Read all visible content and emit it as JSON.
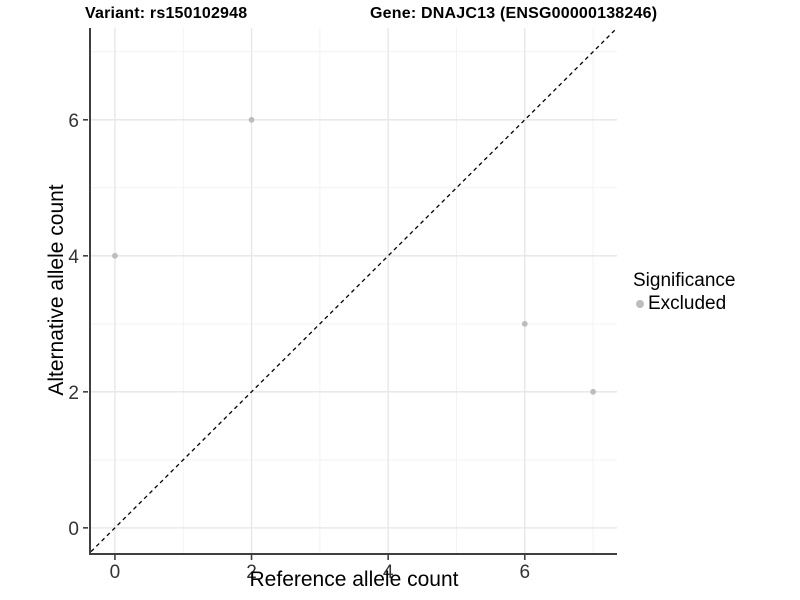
{
  "titles": {
    "variant": "Variant: rs150102948",
    "gene": "Gene: DNAJC13 (ENSG00000138246)"
  },
  "legend": {
    "title": "Significance",
    "items": [
      {
        "label": "Excluded",
        "color": "#bdbdbd"
      }
    ]
  },
  "colors": {
    "point": "#bdbdbd",
    "grid_major": "#e6e6e6",
    "grid_minor": "#f2f2f2",
    "axis_line": "#3f3f3f",
    "tick_label": "#333333",
    "dashed_line": "#000000",
    "background": "#ffffff"
  },
  "chart_data": {
    "type": "scatter",
    "title": "Variant: rs150102948   Gene: DNAJC13 (ENSG00000138246)",
    "xlabel": "Reference allele count",
    "ylabel": "Alternative allele count",
    "xlim": [
      -0.35,
      7.35
    ],
    "ylim": [
      -0.37,
      7.35
    ],
    "x_ticks": [
      0,
      2,
      4,
      6
    ],
    "y_ticks": [
      0,
      2,
      4,
      6
    ],
    "x_minor_ticks": [
      1,
      3,
      5,
      7
    ],
    "y_minor_ticks": [
      1,
      3,
      5,
      7
    ],
    "grid": true,
    "legend_position": "right",
    "series": [
      {
        "name": "Excluded",
        "color": "#bdbdbd",
        "points": [
          [
            0,
            4
          ],
          [
            2,
            6
          ],
          [
            6,
            3
          ],
          [
            7,
            2
          ]
        ]
      }
    ],
    "reference_line": {
      "kind": "identity",
      "equation": "y = x",
      "style": "dashed",
      "color": "#000000"
    }
  }
}
